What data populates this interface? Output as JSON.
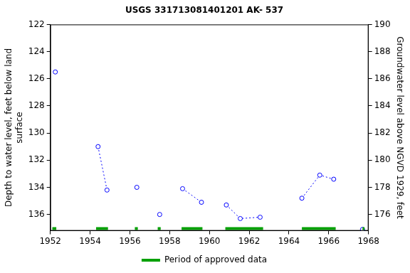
{
  "chart_data": {
    "type": "line",
    "title": "USGS 331713081401201 AK- 537",
    "ylabel": [
      "Depth to water level, feet below land",
      "surface"
    ],
    "y2label": "Groundwater level above NGVD 1929, feet",
    "xlim": [
      1952,
      1968
    ],
    "xticks": [
      1952,
      1954,
      1956,
      1958,
      1960,
      1962,
      1964,
      1966,
      1968
    ],
    "ylim": [
      137.2,
      122
    ],
    "yticks": [
      122,
      124,
      126,
      128,
      130,
      132,
      134,
      136
    ],
    "y2lim": [
      174.8,
      190
    ],
    "y2ticks": [
      176,
      178,
      180,
      182,
      184,
      186,
      188,
      190
    ],
    "grid": false,
    "legend": "bottom",
    "series": [
      {
        "color": "#0000ff",
        "marker": "circle",
        "line_style": "dotted",
        "x": [
          1952.25
        ],
        "values": [
          125.5
        ]
      },
      {
        "color": "#0000ff",
        "marker": "circle",
        "line_style": "dotted",
        "x": [
          1954.4,
          1954.85
        ],
        "values": [
          131.0,
          134.2
        ]
      },
      {
        "color": "#0000ff",
        "marker": "circle",
        "line_style": "dotted",
        "x": [
          1956.35
        ],
        "values": [
          134.0
        ]
      },
      {
        "color": "#0000ff",
        "marker": "circle",
        "line_style": "dotted",
        "x": [
          1957.5
        ],
        "values": [
          136.0
        ]
      },
      {
        "color": "#0000ff",
        "marker": "circle",
        "line_style": "dotted",
        "x": [
          1958.65,
          1959.6
        ],
        "values": [
          134.1,
          135.1
        ]
      },
      {
        "color": "#0000ff",
        "marker": "circle",
        "line_style": "dotted",
        "x": [
          1960.85,
          1961.55,
          1962.55
        ],
        "values": [
          135.3,
          136.3,
          136.2
        ]
      },
      {
        "color": "#0000ff",
        "marker": "circle",
        "line_style": "dotted",
        "x": [
          1964.65,
          1965.55,
          1966.25
        ],
        "values": [
          134.8,
          133.1,
          133.4
        ]
      },
      {
        "color": "#0000ff",
        "marker": "circle",
        "line_style": "dotted",
        "x": [
          1967.7
        ],
        "values": [
          137.1
        ]
      }
    ],
    "approved": {
      "name": "Period of approved data",
      "color": "#00a000",
      "periods": [
        [
          1952.1,
          1952.3
        ],
        [
          1954.3,
          1954.9
        ],
        [
          1956.25,
          1956.4
        ],
        [
          1957.4,
          1957.55
        ],
        [
          1958.6,
          1959.65
        ],
        [
          1960.8,
          1962.7
        ],
        [
          1964.65,
          1966.35
        ],
        [
          1967.7,
          1967.8
        ]
      ]
    }
  }
}
